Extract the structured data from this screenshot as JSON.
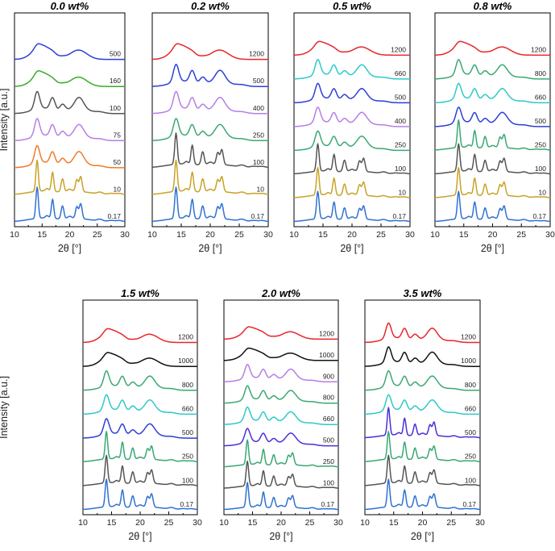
{
  "chart_data": [
    {
      "type": "line",
      "title": "0.0 wt%",
      "xlabel": "2θ   [°]",
      "ylabel": "Intensity   [a.u.]",
      "xlim": [
        10,
        30
      ],
      "xticks": [
        "10",
        "15",
        "20",
        "25",
        "30"
      ],
      "series": [
        {
          "name": "0.17",
          "color": "#2f72d1",
          "profile": "sharp"
        },
        {
          "name": "10",
          "color": "#c9a227",
          "profile": "sharp"
        },
        {
          "name": "50",
          "color": "#f07a2a",
          "profile": "medium"
        },
        {
          "name": "75",
          "color": "#b57ee6",
          "profile": "medium"
        },
        {
          "name": "100",
          "color": "#555555",
          "profile": "medium"
        },
        {
          "name": "160",
          "color": "#3aaa2a",
          "profile": "broad"
        },
        {
          "name": "500",
          "color": "#2d3fd8",
          "profile": "broad"
        }
      ]
    },
    {
      "type": "line",
      "title": "0.2 wt%",
      "xlabel": "2θ   [°]",
      "xlim": [
        10,
        30
      ],
      "xticks": [
        "10",
        "15",
        "20",
        "25",
        "30"
      ],
      "series": [
        {
          "name": "0.17",
          "color": "#2f72d1",
          "profile": "sharp"
        },
        {
          "name": "10",
          "color": "#c9a227",
          "profile": "sharp"
        },
        {
          "name": "100",
          "color": "#555555",
          "profile": "sharp"
        },
        {
          "name": "250",
          "color": "#3aa872",
          "profile": "medium"
        },
        {
          "name": "400",
          "color": "#b57ee6",
          "profile": "medium"
        },
        {
          "name": "500",
          "color": "#2d3fd8",
          "profile": "medium"
        },
        {
          "name": "1200",
          "color": "#e8262a",
          "profile": "broad"
        }
      ]
    },
    {
      "type": "line",
      "title": "0.5 wt%",
      "xlabel": "2θ   [°]",
      "xlim": [
        10,
        30
      ],
      "xticks": [
        "10",
        "15",
        "20",
        "25",
        "30"
      ],
      "series": [
        {
          "name": "0.17",
          "color": "#2f72d1",
          "profile": "sharp"
        },
        {
          "name": "10",
          "color": "#c9a227",
          "profile": "sharp"
        },
        {
          "name": "100",
          "color": "#555555",
          "profile": "sharp"
        },
        {
          "name": "250",
          "color": "#3aa872",
          "profile": "medium"
        },
        {
          "name": "400",
          "color": "#b57ee6",
          "profile": "medium"
        },
        {
          "name": "500",
          "color": "#2d3fd8",
          "profile": "medium"
        },
        {
          "name": "660",
          "color": "#2ec9c9",
          "profile": "medium"
        },
        {
          "name": "1200",
          "color": "#e8262a",
          "profile": "broad"
        }
      ]
    },
    {
      "type": "line",
      "title": "0.8 wt%",
      "xlabel": "2θ   [°]",
      "xlim": [
        10,
        30
      ],
      "xticks": [
        "10",
        "15",
        "20",
        "25",
        "30"
      ],
      "series": [
        {
          "name": "0.17",
          "color": "#2f72d1",
          "profile": "sharp"
        },
        {
          "name": "10",
          "color": "#c9a227",
          "profile": "sharp"
        },
        {
          "name": "100",
          "color": "#555555",
          "profile": "sharp"
        },
        {
          "name": "250",
          "color": "#3aa872",
          "profile": "sharp"
        },
        {
          "name": "500",
          "color": "#2d3fd8",
          "profile": "medium"
        },
        {
          "name": "660",
          "color": "#2ec9c9",
          "profile": "medium"
        },
        {
          "name": "800",
          "color": "#3aa872",
          "profile": "medium"
        },
        {
          "name": "1200",
          "color": "#e8262a",
          "profile": "broad"
        }
      ]
    },
    {
      "type": "line",
      "title": "1.5 wt%",
      "xlabel": "2θ   [°]",
      "ylabel": "Intensity   [a.u.]",
      "xlim": [
        10,
        30
      ],
      "xticks": [
        "10",
        "15",
        "20",
        "25",
        "30"
      ],
      "series": [
        {
          "name": "0.17",
          "color": "#2f72d1",
          "profile": "sharp"
        },
        {
          "name": "100",
          "color": "#555555",
          "profile": "sharp"
        },
        {
          "name": "250",
          "color": "#3aa872",
          "profile": "sharp"
        },
        {
          "name": "500",
          "color": "#2d3fd8",
          "profile": "medium"
        },
        {
          "name": "660",
          "color": "#2ec9c9",
          "profile": "medium"
        },
        {
          "name": "800",
          "color": "#3aa872",
          "profile": "medium"
        },
        {
          "name": "1000",
          "color": "#111111",
          "profile": "broad"
        },
        {
          "name": "1200",
          "color": "#e8262a",
          "profile": "broad"
        }
      ]
    },
    {
      "type": "line",
      "title": "2.0 wt%",
      "xlabel": "2θ   [°]",
      "xlim": [
        10,
        30
      ],
      "xticks": [
        "10",
        "15",
        "20",
        "25",
        "30"
      ],
      "series": [
        {
          "name": "0.17",
          "color": "#2f72d1",
          "profile": "sharp"
        },
        {
          "name": "100",
          "color": "#555555",
          "profile": "sharp"
        },
        {
          "name": "250",
          "color": "#3aa872",
          "profile": "sharp"
        },
        {
          "name": "500",
          "color": "#4a2fd8",
          "profile": "medium"
        },
        {
          "name": "660",
          "color": "#2ec9c9",
          "profile": "medium"
        },
        {
          "name": "800",
          "color": "#3aa872",
          "profile": "medium"
        },
        {
          "name": "900",
          "color": "#b57ee6",
          "profile": "medium"
        },
        {
          "name": "1000",
          "color": "#111111",
          "profile": "broad"
        },
        {
          "name": "1200",
          "color": "#e8262a",
          "profile": "broad"
        }
      ]
    },
    {
      "type": "line",
      "title": "3.5 wt%",
      "xlabel": "2θ   [°]",
      "xlim": [
        10,
        30
      ],
      "xticks": [
        "10",
        "15",
        "20",
        "25",
        "30"
      ],
      "series": [
        {
          "name": "0.17",
          "color": "#2f72d1",
          "profile": "sharp"
        },
        {
          "name": "100",
          "color": "#555555",
          "profile": "sharp"
        },
        {
          "name": "250",
          "color": "#3aa872",
          "profile": "sharp"
        },
        {
          "name": "500",
          "color": "#4a2fd8",
          "profile": "sharp"
        },
        {
          "name": "660",
          "color": "#2ec9c9",
          "profile": "medium"
        },
        {
          "name": "800",
          "color": "#3aa872",
          "profile": "medium"
        },
        {
          "name": "1000",
          "color": "#111111",
          "profile": "medium"
        },
        {
          "name": "1200",
          "color": "#e8262a",
          "profile": "medium"
        }
      ]
    }
  ]
}
